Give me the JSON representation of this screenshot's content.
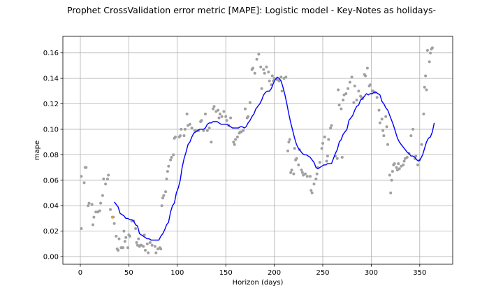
{
  "chart_data": {
    "type": "scatter",
    "title": "Prophet CrossValidation error metric [MAPE]: Logistic model - Key-Notes as holidays-",
    "xlabel": "Horizon (days)",
    "ylabel": "mape",
    "xlim": [
      -18,
      384
    ],
    "ylim": [
      -0.006,
      0.173
    ],
    "xticks": [
      0,
      50,
      100,
      150,
      200,
      250,
      300,
      350
    ],
    "yticks": [
      0.0,
      0.02,
      0.04,
      0.06,
      0.08,
      0.1,
      0.12,
      0.14,
      0.16
    ],
    "grid": true,
    "colors": {
      "points": "#a0a0a0",
      "highlight": "#d4a04a",
      "line": "#0000ff"
    },
    "points": [
      [
        1,
        0.022
      ],
      [
        1,
        0.063
      ],
      [
        4,
        0.058
      ],
      [
        5,
        0.07
      ],
      [
        6,
        0.07
      ],
      [
        8,
        0.04
      ],
      [
        9,
        0.042
      ],
      [
        12,
        0.041
      ],
      [
        13,
        0.025
      ],
      [
        14,
        0.031
      ],
      [
        16,
        0.035
      ],
      [
        18,
        0.035
      ],
      [
        20,
        0.036
      ],
      [
        21,
        0.042
      ],
      [
        23,
        0.048
      ],
      [
        24,
        0.061
      ],
      [
        26,
        0.057
      ],
      [
        28,
        0.061
      ],
      [
        29,
        0.064
      ],
      [
        31,
        0.037
      ],
      [
        34,
        0.031
      ],
      [
        35,
        0.026
      ],
      [
        37,
        0.016
      ],
      [
        38,
        0.006
      ],
      [
        39,
        0.005
      ],
      [
        40,
        0.014
      ],
      [
        42,
        0.007
      ],
      [
        43,
        0.007
      ],
      [
        44,
        0.007
      ],
      [
        45,
        0.02
      ],
      [
        46,
        0.012
      ],
      [
        47,
        0.015
      ],
      [
        49,
        0.007
      ],
      [
        50,
        0.017
      ],
      [
        51,
        0.016
      ],
      [
        53,
        0.028
      ],
      [
        55,
        0.028
      ],
      [
        57,
        0.022
      ],
      [
        58,
        0.011
      ],
      [
        59,
        0.009
      ],
      [
        60,
        0.014
      ],
      [
        61,
        0.008
      ],
      [
        62,
        0.009
      ],
      [
        63,
        0.009
      ],
      [
        65,
        0.008
      ],
      [
        66,
        0.017
      ],
      [
        67,
        0.005
      ],
      [
        69,
        0.01
      ],
      [
        70,
        0.003
      ],
      [
        72,
        0.011
      ],
      [
        74,
        0.009
      ],
      [
        77,
        0.008
      ],
      [
        78,
        0.003
      ],
      [
        80,
        0.006
      ],
      [
        82,
        0.007
      ],
      [
        83,
        0.006
      ],
      [
        84,
        0.04
      ],
      [
        85,
        0.046
      ],
      [
        86,
        0.048
      ],
      [
        88,
        0.051
      ],
      [
        89,
        0.061
      ],
      [
        90,
        0.067
      ],
      [
        91,
        0.071
      ],
      [
        93,
        0.076
      ],
      [
        94,
        0.078
      ],
      [
        96,
        0.08
      ],
      [
        97,
        0.093
      ],
      [
        98,
        0.094
      ],
      [
        102,
        0.094
      ],
      [
        103,
        0.095
      ],
      [
        104,
        0.1
      ],
      [
        107,
        0.095
      ],
      [
        108,
        0.1
      ],
      [
        110,
        0.112
      ],
      [
        111,
        0.103
      ],
      [
        113,
        0.104
      ],
      [
        115,
        0.101
      ],
      [
        118,
        0.099
      ],
      [
        121,
        0.099
      ],
      [
        122,
        0.099
      ],
      [
        124,
        0.106
      ],
      [
        125,
        0.107
      ],
      [
        127,
        0.099
      ],
      [
        129,
        0.112
      ],
      [
        131,
        0.099
      ],
      [
        133,
        0.101
      ],
      [
        135,
        0.09
      ],
      [
        137,
        0.116
      ],
      [
        138,
        0.118
      ],
      [
        140,
        0.114
      ],
      [
        142,
        0.115
      ],
      [
        143,
        0.109
      ],
      [
        144,
        0.112
      ],
      [
        146,
        0.11
      ],
      [
        148,
        0.114
      ],
      [
        150,
        0.11
      ],
      [
        151,
        0.107
      ],
      [
        153,
        0.103
      ],
      [
        155,
        0.109
      ],
      [
        158,
        0.09
      ],
      [
        159,
        0.088
      ],
      [
        160,
        0.092
      ],
      [
        162,
        0.094
      ],
      [
        164,
        0.097
      ],
      [
        165,
        0.098
      ],
      [
        166,
        0.098
      ],
      [
        168,
        0.099
      ],
      [
        170,
        0.116
      ],
      [
        172,
        0.109
      ],
      [
        173,
        0.11
      ],
      [
        175,
        0.121
      ],
      [
        177,
        0.147
      ],
      [
        178,
        0.148
      ],
      [
        180,
        0.144
      ],
      [
        182,
        0.155
      ],
      [
        184,
        0.159
      ],
      [
        186,
        0.149
      ],
      [
        187,
        0.132
      ],
      [
        189,
        0.147
      ],
      [
        190,
        0.144
      ],
      [
        192,
        0.149
      ],
      [
        194,
        0.145
      ],
      [
        195,
        0.138
      ],
      [
        197,
        0.135
      ],
      [
        198,
        0.142
      ],
      [
        199,
        0.138
      ],
      [
        200,
        0.14
      ],
      [
        203,
        0.139
      ],
      [
        205,
        0.138
      ],
      [
        207,
        0.141
      ],
      [
        208,
        0.13
      ],
      [
        210,
        0.14
      ],
      [
        212,
        0.141
      ],
      [
        214,
        0.083
      ],
      [
        215,
        0.09
      ],
      [
        216,
        0.092
      ],
      [
        217,
        0.066
      ],
      [
        218,
        0.068
      ],
      [
        220,
        0.065
      ],
      [
        221,
        0.085
      ],
      [
        222,
        0.076
      ],
      [
        223,
        0.077
      ],
      [
        225,
        0.072
      ],
      [
        226,
        0.084
      ],
      [
        228,
        0.068
      ],
      [
        229,
        0.066
      ],
      [
        230,
        0.064
      ],
      [
        232,
        0.065
      ],
      [
        234,
        0.063
      ],
      [
        237,
        0.063
      ],
      [
        238,
        0.052
      ],
      [
        239,
        0.05
      ],
      [
        241,
        0.057
      ],
      [
        243,
        0.061
      ],
      [
        244,
        0.065
      ],
      [
        245,
        0.07
      ],
      [
        247,
        0.074
      ],
      [
        249,
        0.085
      ],
      [
        250,
        0.089
      ],
      [
        252,
        0.094
      ],
      [
        254,
        0.075
      ],
      [
        255,
        0.079
      ],
      [
        256,
        0.092
      ],
      [
        258,
        0.101
      ],
      [
        259,
        0.103
      ],
      [
        263,
        0.079
      ],
      [
        265,
        0.077
      ],
      [
        266,
        0.131
      ],
      [
        267,
        0.119
      ],
      [
        269,
        0.116
      ],
      [
        270,
        0.078
      ],
      [
        271,
        0.123
      ],
      [
        272,
        0.127
      ],
      [
        274,
        0.128
      ],
      [
        276,
        0.132
      ],
      [
        278,
        0.137
      ],
      [
        280,
        0.141
      ],
      [
        282,
        0.121
      ],
      [
        283,
        0.134
      ],
      [
        285,
        0.123
      ],
      [
        287,
        0.13
      ],
      [
        289,
        0.126
      ],
      [
        290,
        0.125
      ],
      [
        291,
        0.124
      ],
      [
        293,
        0.143
      ],
      [
        294,
        0.142
      ],
      [
        296,
        0.148
      ],
      [
        298,
        0.134
      ],
      [
        299,
        0.135
      ],
      [
        301,
        0.13
      ],
      [
        302,
        0.13
      ],
      [
        304,
        0.129
      ],
      [
        306,
        0.125
      ],
      [
        308,
        0.115
      ],
      [
        309,
        0.105
      ],
      [
        311,
        0.108
      ],
      [
        312,
        0.099
      ],
      [
        313,
        0.095
      ],
      [
        315,
        0.11
      ],
      [
        316,
        0.102
      ],
      [
        317,
        0.088
      ],
      [
        319,
        0.064
      ],
      [
        320,
        0.05
      ],
      [
        321,
        0.06
      ],
      [
        322,
        0.067
      ],
      [
        323,
        0.072
      ],
      [
        324,
        0.073
      ],
      [
        326,
        0.07
      ],
      [
        327,
        0.068
      ],
      [
        328,
        0.073
      ],
      [
        329,
        0.069
      ],
      [
        331,
        0.071
      ],
      [
        333,
        0.072
      ],
      [
        334,
        0.075
      ],
      [
        335,
        0.077
      ],
      [
        337,
        0.078
      ],
      [
        339,
        0.081
      ],
      [
        341,
        0.095
      ],
      [
        343,
        0.1
      ],
      [
        345,
        0.077
      ],
      [
        346,
        0.079
      ],
      [
        348,
        0.072
      ],
      [
        350,
        0.076
      ],
      [
        352,
        0.088
      ],
      [
        354,
        0.112
      ],
      [
        355,
        0.133
      ],
      [
        356,
        0.142
      ],
      [
        357,
        0.131
      ],
      [
        358,
        0.162
      ],
      [
        360,
        0.153
      ],
      [
        361,
        0.16
      ],
      [
        362,
        0.163
      ],
      [
        363,
        0.164
      ]
    ],
    "highlight_points": [
      [
        33,
        0.031
      ]
    ],
    "line": [
      [
        35,
        0.043
      ],
      [
        37,
        0.041
      ],
      [
        39,
        0.039
      ],
      [
        41,
        0.034
      ],
      [
        43,
        0.033
      ],
      [
        45,
        0.032
      ],
      [
        47,
        0.03
      ],
      [
        49,
        0.03
      ],
      [
        51,
        0.029
      ],
      [
        53,
        0.029
      ],
      [
        55,
        0.028
      ],
      [
        57,
        0.025
      ],
      [
        59,
        0.024
      ],
      [
        61,
        0.018
      ],
      [
        63,
        0.017
      ],
      [
        65,
        0.016
      ],
      [
        67,
        0.015
      ],
      [
        69,
        0.014
      ],
      [
        71,
        0.014
      ],
      [
        73,
        0.013
      ],
      [
        75,
        0.013
      ],
      [
        77,
        0.013
      ],
      [
        79,
        0.013
      ],
      [
        81,
        0.013
      ],
      [
        83,
        0.016
      ],
      [
        85,
        0.018
      ],
      [
        87,
        0.021
      ],
      [
        89,
        0.025
      ],
      [
        91,
        0.027
      ],
      [
        93,
        0.035
      ],
      [
        95,
        0.04
      ],
      [
        97,
        0.042
      ],
      [
        99,
        0.05
      ],
      [
        101,
        0.054
      ],
      [
        103,
        0.06
      ],
      [
        105,
        0.07
      ],
      [
        107,
        0.077
      ],
      [
        109,
        0.082
      ],
      [
        111,
        0.088
      ],
      [
        113,
        0.09
      ],
      [
        115,
        0.094
      ],
      [
        117,
        0.097
      ],
      [
        119,
        0.098
      ],
      [
        121,
        0.099
      ],
      [
        123,
        0.1
      ],
      [
        125,
        0.1
      ],
      [
        127,
        0.1
      ],
      [
        129,
        0.101
      ],
      [
        131,
        0.104
      ],
      [
        133,
        0.105
      ],
      [
        135,
        0.105
      ],
      [
        137,
        0.106
      ],
      [
        139,
        0.106
      ],
      [
        141,
        0.106
      ],
      [
        143,
        0.105
      ],
      [
        145,
        0.104
      ],
      [
        147,
        0.104
      ],
      [
        149,
        0.104
      ],
      [
        151,
        0.104
      ],
      [
        153,
        0.103
      ],
      [
        155,
        0.102
      ],
      [
        157,
        0.101
      ],
      [
        159,
        0.101
      ],
      [
        161,
        0.101
      ],
      [
        163,
        0.101
      ],
      [
        165,
        0.102
      ],
      [
        167,
        0.102
      ],
      [
        169,
        0.101
      ],
      [
        171,
        0.102
      ],
      [
        173,
        0.105
      ],
      [
        175,
        0.107
      ],
      [
        177,
        0.11
      ],
      [
        179,
        0.112
      ],
      [
        181,
        0.116
      ],
      [
        183,
        0.118
      ],
      [
        185,
        0.12
      ],
      [
        187,
        0.123
      ],
      [
        189,
        0.127
      ],
      [
        191,
        0.129
      ],
      [
        193,
        0.13
      ],
      [
        195,
        0.13
      ],
      [
        197,
        0.132
      ],
      [
        199,
        0.136
      ],
      [
        201,
        0.139
      ],
      [
        203,
        0.141
      ],
      [
        205,
        0.14
      ],
      [
        207,
        0.138
      ],
      [
        209,
        0.133
      ],
      [
        211,
        0.127
      ],
      [
        213,
        0.12
      ],
      [
        215,
        0.112
      ],
      [
        217,
        0.105
      ],
      [
        219,
        0.099
      ],
      [
        221,
        0.093
      ],
      [
        223,
        0.088
      ],
      [
        225,
        0.085
      ],
      [
        227,
        0.083
      ],
      [
        229,
        0.081
      ],
      [
        231,
        0.08
      ],
      [
        233,
        0.08
      ],
      [
        235,
        0.079
      ],
      [
        237,
        0.078
      ],
      [
        239,
        0.076
      ],
      [
        241,
        0.074
      ],
      [
        243,
        0.07
      ],
      [
        245,
        0.069
      ],
      [
        247,
        0.07
      ],
      [
        249,
        0.071
      ],
      [
        251,
        0.072
      ],
      [
        253,
        0.072
      ],
      [
        255,
        0.073
      ],
      [
        257,
        0.073
      ],
      [
        259,
        0.073
      ],
      [
        261,
        0.077
      ],
      [
        263,
        0.081
      ],
      [
        265,
        0.084
      ],
      [
        267,
        0.09
      ],
      [
        269,
        0.092
      ],
      [
        271,
        0.096
      ],
      [
        273,
        0.098
      ],
      [
        275,
        0.1
      ],
      [
        277,
        0.107
      ],
      [
        279,
        0.109
      ],
      [
        281,
        0.111
      ],
      [
        283,
        0.115
      ],
      [
        285,
        0.118
      ],
      [
        287,
        0.119
      ],
      [
        289,
        0.123
      ],
      [
        291,
        0.124
      ],
      [
        293,
        0.126
      ],
      [
        295,
        0.128
      ],
      [
        297,
        0.127
      ],
      [
        299,
        0.128
      ],
      [
        301,
        0.128
      ],
      [
        303,
        0.129
      ],
      [
        305,
        0.129
      ],
      [
        307,
        0.128
      ],
      [
        309,
        0.127
      ],
      [
        311,
        0.122
      ],
      [
        313,
        0.12
      ],
      [
        315,
        0.117
      ],
      [
        317,
        0.115
      ],
      [
        319,
        0.111
      ],
      [
        321,
        0.107
      ],
      [
        323,
        0.103
      ],
      [
        325,
        0.098
      ],
      [
        327,
        0.093
      ],
      [
        329,
        0.09
      ],
      [
        331,
        0.088
      ],
      [
        333,
        0.086
      ],
      [
        335,
        0.084
      ],
      [
        337,
        0.082
      ],
      [
        339,
        0.081
      ],
      [
        341,
        0.079
      ],
      [
        343,
        0.079
      ],
      [
        345,
        0.078
      ],
      [
        347,
        0.076
      ],
      [
        349,
        0.075
      ],
      [
        351,
        0.077
      ],
      [
        353,
        0.08
      ],
      [
        355,
        0.085
      ],
      [
        357,
        0.09
      ],
      [
        359,
        0.093
      ],
      [
        361,
        0.094
      ],
      [
        363,
        0.098
      ],
      [
        365,
        0.105
      ]
    ]
  }
}
